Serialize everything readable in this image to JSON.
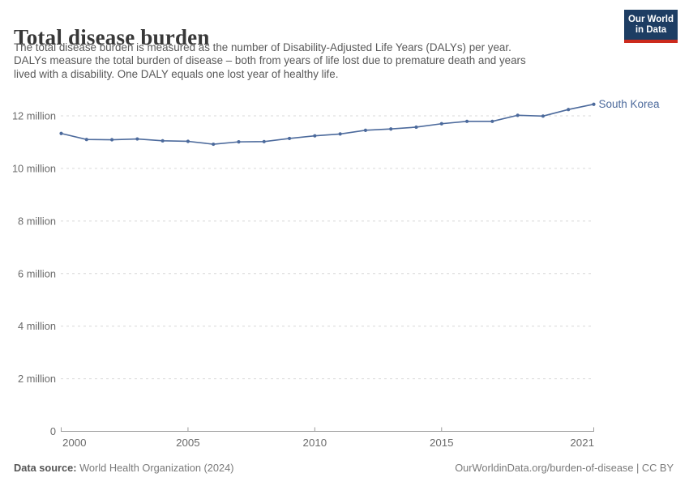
{
  "header": {
    "title": "Total disease burden",
    "subtitle_lines": [
      "The total disease burden is measured as the number of Disability-Adjusted Life Years (DALYs) per year.",
      "DALYs measure the total burden of disease – both from years of life lost due to premature death and years",
      "lived with a disability. One DALY equals one lost year of healthy life."
    ],
    "logo": {
      "line1": "Our World",
      "line2": "in Data",
      "bg_color": "#1d3d63",
      "accent_color": "#cc2a1d"
    }
  },
  "chart_data": {
    "type": "line",
    "title": "Total disease burden",
    "unit": "DALYs (Disability-Adjusted Life Years) per year",
    "values_unit": "million",
    "x": [
      2000,
      2001,
      2002,
      2003,
      2004,
      2005,
      2006,
      2007,
      2008,
      2009,
      2010,
      2011,
      2012,
      2013,
      2014,
      2015,
      2016,
      2017,
      2018,
      2019,
      2020,
      2021
    ],
    "series": [
      {
        "name": "South Korea",
        "color": "#4c6a9c",
        "values": [
          11.33,
          11.1,
          11.09,
          11.12,
          11.05,
          11.03,
          10.92,
          11.01,
          11.02,
          11.14,
          11.24,
          11.31,
          11.45,
          11.5,
          11.57,
          11.7,
          11.79,
          11.79,
          12.02,
          11.99,
          12.24,
          12.44
        ]
      }
    ],
    "series_end_label": "South Korea",
    "x_ticks": [
      2000,
      2005,
      2010,
      2015,
      2021
    ],
    "y_ticks": [
      {
        "value": 0,
        "label": "0"
      },
      {
        "value": 2,
        "label": "2 million"
      },
      {
        "value": 4,
        "label": "4 million"
      },
      {
        "value": 6,
        "label": "6 million"
      },
      {
        "value": 8,
        "label": "8 million"
      },
      {
        "value": 10,
        "label": "10 million"
      },
      {
        "value": 12,
        "label": "12 million"
      }
    ],
    "xlim": [
      2000,
      2021
    ],
    "ylim": [
      0,
      12.6
    ],
    "grid": "horizontal dashed",
    "legend_position": "end-of-line label"
  },
  "footer": {
    "source_label": "Data source:",
    "source_text": " World Health Organization (2024)",
    "citation_link": "OurWorldinData.org/burden-of-disease",
    "citation_suffix": " | CC BY"
  },
  "colors": {
    "line": "#4c6a9c",
    "grid": "#d9d9d9",
    "axis": "#9c9c9c",
    "tick_label": "#6b6b6b",
    "subtitle_text": "#595959",
    "title_text": "#383838"
  }
}
